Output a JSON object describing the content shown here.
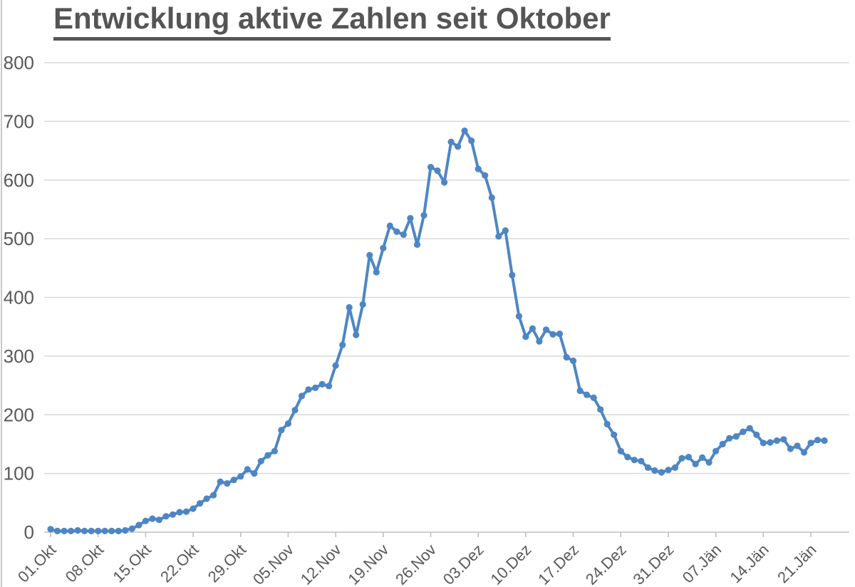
{
  "title": "Entwicklung aktive Zahlen seit Oktober",
  "chart_data": {
    "type": "line",
    "title": "Entwicklung aktive Zahlen seit Oktober",
    "x_tick_labels": [
      "01.Okt",
      "08.Okt",
      "15.Okt",
      "22.Okt",
      "29.Okt",
      "05.Nov",
      "12.Nov",
      "19.Nov",
      "26.Nov",
      "03.Dez",
      "10.Dez",
      "17.Dez",
      "24.Dez",
      "31.Dez",
      "07.Jän",
      "14.Jän",
      "21.Jän"
    ],
    "x_label_interval_days": 7,
    "x_label_rotation_deg": -45,
    "points_are_daily": true,
    "n_points": 115,
    "ylim": [
      0,
      800
    ],
    "ytick_step": 100,
    "y_tick_labels": [
      "0",
      "100",
      "200",
      "300",
      "400",
      "500",
      "600",
      "700",
      "800"
    ],
    "grid": "horizontal",
    "legend": "none",
    "markers": true,
    "values": [
      5,
      2,
      2,
      2,
      3,
      2,
      2,
      2,
      2,
      2,
      2,
      3,
      6,
      12,
      19,
      23,
      21,
      27,
      30,
      34,
      35,
      40,
      49,
      57,
      63,
      86,
      83,
      89,
      95,
      107,
      100,
      121,
      131,
      138,
      174,
      185,
      208,
      232,
      243,
      246,
      252,
      249,
      284,
      319,
      383,
      336,
      388,
      472,
      443,
      484,
      522,
      512,
      507,
      535,
      490,
      540,
      622,
      616,
      596,
      665,
      657,
      684,
      667,
      619,
      608,
      570,
      504,
      514,
      438,
      368,
      333,
      347,
      325,
      345,
      337,
      338,
      298,
      292,
      241,
      234,
      229,
      209,
      184,
      166,
      138,
      128,
      123,
      121,
      110,
      105,
      102,
      106,
      110,
      126,
      128,
      116,
      127,
      119,
      138,
      150,
      160,
      163,
      171,
      177,
      166,
      152,
      153,
      156,
      158,
      142,
      147,
      136,
      152,
      157,
      156
    ],
    "colors": {
      "line": "#4e86c4",
      "marker": "#4e86c4",
      "gridline": "#d9d9d9",
      "axis": "#bfbfbf",
      "tick_text": "#595959",
      "title_text": "#555555"
    }
  }
}
